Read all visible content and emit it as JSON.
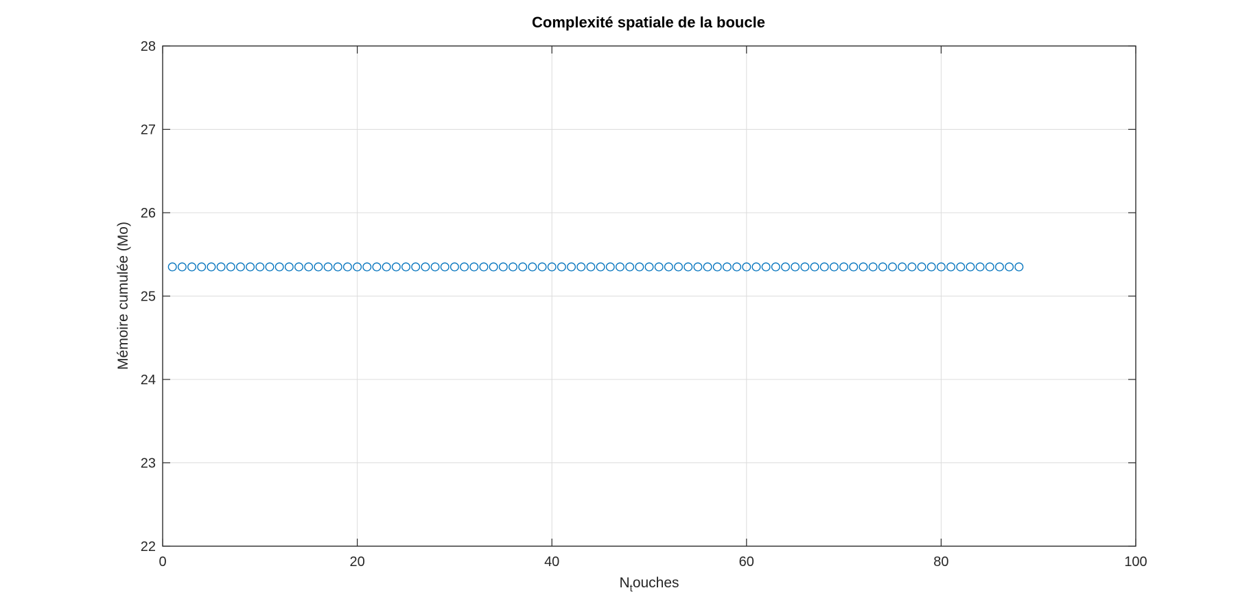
{
  "chart_data": {
    "type": "scatter",
    "title": "Complexité spatiale de la boucle",
    "xlabel_main": "N",
    "xlabel_sub": "t",
    "xlabel_rest": "ouches",
    "ylabel": "Mémoire cumulée (Mo)",
    "xlim": [
      0,
      100
    ],
    "ylim": [
      22,
      28
    ],
    "xticks": [
      0,
      20,
      40,
      60,
      80,
      100
    ],
    "yticks": [
      22,
      23,
      24,
      25,
      26,
      27,
      28
    ],
    "xtick_labels": [
      "0",
      "20",
      "40",
      "60",
      "80",
      "100"
    ],
    "ytick_labels": [
      "22",
      "23",
      "24",
      "25",
      "26",
      "27",
      "28"
    ],
    "grid": true,
    "marker": "circle",
    "color": "#0072BD",
    "series": [
      {
        "x": [
          1,
          2,
          3,
          4,
          5,
          6,
          7,
          8,
          9,
          10,
          11,
          12,
          13,
          14,
          15,
          16,
          17,
          18,
          19,
          20,
          21,
          22,
          23,
          24,
          25,
          26,
          27,
          28,
          29,
          30,
          31,
          32,
          33,
          34,
          35,
          36,
          37,
          38,
          39,
          40,
          41,
          42,
          43,
          44,
          45,
          46,
          47,
          48,
          49,
          50,
          51,
          52,
          53,
          54,
          55,
          56,
          57,
          58,
          59,
          60,
          61,
          62,
          63,
          64,
          65,
          66,
          67,
          68,
          69,
          70,
          71,
          72,
          73,
          74,
          75,
          76,
          77,
          78,
          79,
          80,
          81,
          82,
          83,
          84,
          85,
          86,
          87,
          88
        ],
        "y": [
          25.35,
          25.35,
          25.35,
          25.35,
          25.35,
          25.35,
          25.35,
          25.35,
          25.35,
          25.35,
          25.35,
          25.35,
          25.35,
          25.35,
          25.35,
          25.35,
          25.35,
          25.35,
          25.35,
          25.35,
          25.35,
          25.35,
          25.35,
          25.35,
          25.35,
          25.35,
          25.35,
          25.35,
          25.35,
          25.35,
          25.35,
          25.35,
          25.35,
          25.35,
          25.35,
          25.35,
          25.35,
          25.35,
          25.35,
          25.35,
          25.35,
          25.35,
          25.35,
          25.35,
          25.35,
          25.35,
          25.35,
          25.35,
          25.35,
          25.35,
          25.35,
          25.35,
          25.35,
          25.35,
          25.35,
          25.35,
          25.35,
          25.35,
          25.35,
          25.35,
          25.35,
          25.35,
          25.35,
          25.35,
          25.35,
          25.35,
          25.35,
          25.35,
          25.35,
          25.35,
          25.35,
          25.35,
          25.35,
          25.35,
          25.35,
          25.35,
          25.35,
          25.35,
          25.35,
          25.35,
          25.35,
          25.35,
          25.35,
          25.35,
          25.35,
          25.35,
          25.35,
          25.35
        ]
      }
    ]
  }
}
